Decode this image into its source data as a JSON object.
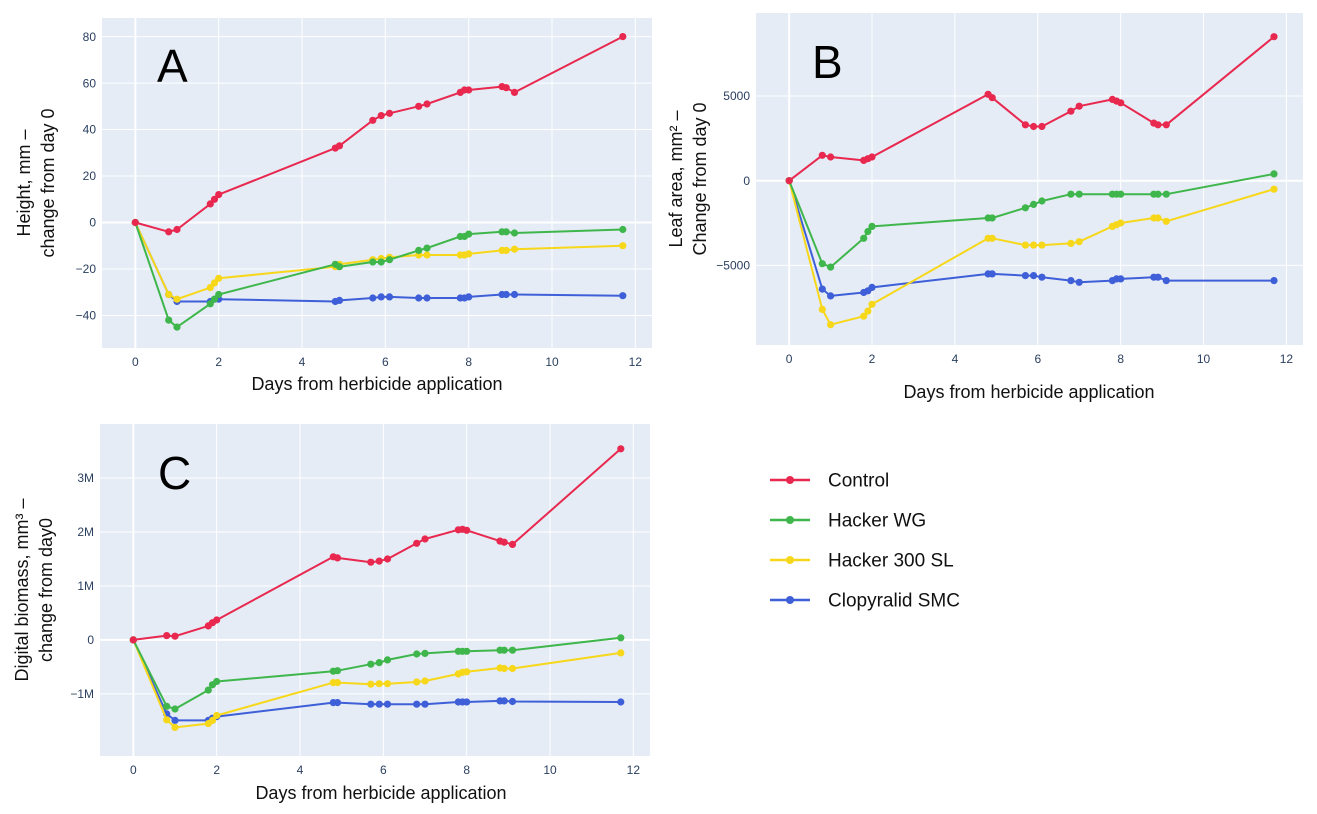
{
  "chart_data": [
    {
      "type": "line",
      "panel_label": "A",
      "xlabel": "Days from herbicide application",
      "ylabel": [
        "Height, mm –",
        "change from day 0"
      ],
      "xlim": [
        -0.8,
        12.4
      ],
      "ylim": [
        -54,
        88
      ],
      "xticks": [
        0,
        2,
        4,
        6,
        8,
        10,
        12
      ],
      "xtick_labels": [
        "0",
        "2",
        "4",
        "6",
        "8",
        "10",
        "12"
      ],
      "yticks": [
        -40,
        -20,
        0,
        20,
        40,
        60,
        80
      ],
      "ytick_labels": [
        "−40",
        "−20",
        "0",
        "20",
        "40",
        "60",
        "80"
      ],
      "x": [
        0,
        0.8,
        1.0,
        1.8,
        1.9,
        2.0,
        4.8,
        4.9,
        5.7,
        5.9,
        6.1,
        6.8,
        7.0,
        7.8,
        7.9,
        8.0,
        8.8,
        8.9,
        9.1,
        11.7
      ],
      "series": [
        {
          "name": "Control",
          "values": [
            0,
            -4,
            -3,
            8,
            10,
            12,
            32,
            33,
            44,
            46,
            47,
            50,
            51,
            56,
            57,
            57,
            58.5,
            58,
            56,
            80
          ]
        },
        {
          "name": "Hacker WG",
          "values": [
            0,
            -42,
            -45,
            -35,
            -33,
            -31,
            -18,
            -19,
            -17,
            -17,
            -16,
            -12,
            -11,
            -6,
            -6,
            -5,
            -4,
            -4,
            -4.5,
            -3
          ]
        },
        {
          "name": "Hacker 300 SL",
          "values": [
            0,
            -31,
            -33,
            -28,
            -26,
            -24,
            -19,
            -18,
            -16,
            -15.5,
            -15,
            -14,
            -14,
            -14,
            -14,
            -13.5,
            -12,
            -12,
            -11.5,
            -10
          ]
        },
        {
          "name": "Clopyralid SMC",
          "values": [
            0,
            -31,
            -34,
            -34,
            -33,
            -33,
            -34,
            -33.5,
            -32.5,
            -32,
            -32,
            -32.5,
            -32.5,
            -32.5,
            -32.5,
            -32,
            -31,
            -31,
            -31,
            -31.5
          ]
        }
      ]
    },
    {
      "type": "line",
      "panel_label": "B",
      "xlabel": "Days from herbicide application",
      "ylabel": [
        "Leaf area, mm² –",
        "Change from day 0"
      ],
      "xlim": [
        -0.8,
        12.4
      ],
      "ylim": [
        -9700,
        9900
      ],
      "xticks": [
        0,
        2,
        4,
        6,
        8,
        10,
        12
      ],
      "xtick_labels": [
        "0",
        "2",
        "4",
        "6",
        "8",
        "10",
        "12"
      ],
      "yticks": [
        -5000,
        0,
        5000
      ],
      "ytick_labels": [
        "−5000",
        "0",
        "5000"
      ],
      "x": [
        0,
        0.8,
        1.0,
        1.8,
        1.9,
        2.0,
        4.8,
        4.9,
        5.7,
        5.9,
        6.1,
        6.8,
        7.0,
        7.8,
        7.9,
        8.0,
        8.8,
        8.9,
        9.1,
        11.7
      ],
      "series": [
        {
          "name": "Control",
          "values": [
            0,
            1500,
            1400,
            1200,
            1300,
            1400,
            5100,
            4900,
            3300,
            3200,
            3200,
            4100,
            4400,
            4800,
            4700,
            4600,
            3400,
            3300,
            3300,
            8500
          ]
        },
        {
          "name": "Hacker WG",
          "values": [
            0,
            -4900,
            -5100,
            -3400,
            -3000,
            -2700,
            -2200,
            -2200,
            -1600,
            -1400,
            -1200,
            -800,
            -800,
            -800,
            -800,
            -800,
            -800,
            -800,
            -800,
            400
          ]
        },
        {
          "name": "Hacker 300 SL",
          "values": [
            0,
            -7600,
            -8500,
            -8000,
            -7700,
            -7300,
            -3400,
            -3400,
            -3800,
            -3800,
            -3800,
            -3700,
            -3600,
            -2700,
            -2600,
            -2500,
            -2200,
            -2200,
            -2400,
            -500
          ]
        },
        {
          "name": "Clopyralid SMC",
          "values": [
            0,
            -6400,
            -6800,
            -6600,
            -6500,
            -6300,
            -5500,
            -5500,
            -5600,
            -5600,
            -5700,
            -5900,
            -6000,
            -5900,
            -5800,
            -5800,
            -5700,
            -5700,
            -5900,
            -5900
          ]
        }
      ]
    },
    {
      "type": "line",
      "panel_label": "C",
      "xlabel": "Days from herbicide application",
      "ylabel": [
        "Digital biomass, mm³ –",
        "change from day0"
      ],
      "xlim": [
        -0.8,
        12.4
      ],
      "ylim": [
        -2150000,
        4000000
      ],
      "xticks": [
        0,
        2,
        4,
        6,
        8,
        10,
        12
      ],
      "xtick_labels": [
        "0",
        "2",
        "4",
        "6",
        "8",
        "10",
        "12"
      ],
      "yticks": [
        -1000000,
        0,
        1000000,
        2000000,
        3000000
      ],
      "ytick_labels": [
        "−1M",
        "0",
        "1M",
        "2M",
        "3M"
      ],
      "x": [
        0,
        0.8,
        1.0,
        1.8,
        1.9,
        2.0,
        4.8,
        4.9,
        5.7,
        5.9,
        6.1,
        6.8,
        7.0,
        7.8,
        7.9,
        8.0,
        8.8,
        8.9,
        9.1,
        11.7
      ],
      "series": [
        {
          "name": "Control",
          "values": [
            0,
            80000,
            70000,
            260000,
            320000,
            370000,
            1540000,
            1520000,
            1440000,
            1460000,
            1500000,
            1790000,
            1870000,
            2040000,
            2050000,
            2030000,
            1830000,
            1810000,
            1770000,
            3540000
          ]
        },
        {
          "name": "Hacker WG",
          "values": [
            0,
            -1230000,
            -1280000,
            -930000,
            -830000,
            -770000,
            -580000,
            -570000,
            -450000,
            -420000,
            -370000,
            -260000,
            -250000,
            -210000,
            -210000,
            -210000,
            -190000,
            -190000,
            -190000,
            40000
          ]
        },
        {
          "name": "Hacker 300 SL",
          "values": [
            0,
            -1480000,
            -1620000,
            -1550000,
            -1490000,
            -1400000,
            -790000,
            -790000,
            -820000,
            -810000,
            -810000,
            -780000,
            -760000,
            -630000,
            -600000,
            -590000,
            -520000,
            -530000,
            -530000,
            -240000
          ]
        },
        {
          "name": "Clopyralid SMC",
          "values": [
            0,
            -1370000,
            -1490000,
            -1490000,
            -1450000,
            -1420000,
            -1160000,
            -1160000,
            -1190000,
            -1190000,
            -1190000,
            -1190000,
            -1190000,
            -1150000,
            -1150000,
            -1150000,
            -1130000,
            -1130000,
            -1140000,
            -1150000
          ]
        }
      ]
    }
  ],
  "legend": {
    "placement": "right-of-panel-C",
    "items": [
      {
        "label": "Control",
        "color": "#e8284f"
      },
      {
        "label": "Hacker WG",
        "color": "#3fb64b"
      },
      {
        "label": "Hacker 300 SL",
        "color": "#f7d71a"
      },
      {
        "label": "Clopyralid SMC",
        "color": "#3e5fd8"
      }
    ]
  },
  "colors": {
    "plot_background": "#e5ecf6",
    "gridline": "#ffffff",
    "tick_text": "#2a3f5f"
  }
}
